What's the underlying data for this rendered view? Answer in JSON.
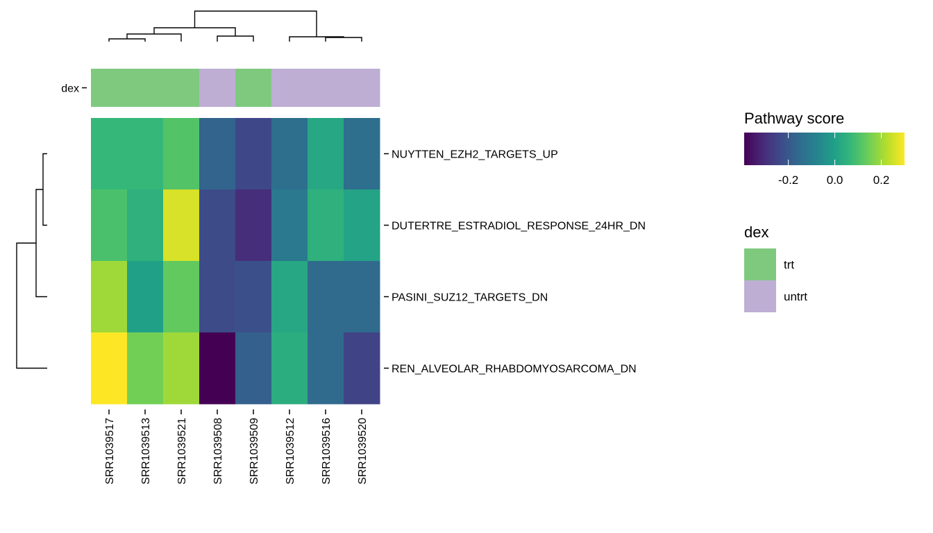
{
  "chart_data": {
    "type": "heatmap",
    "samples": [
      "SRR1039517",
      "SRR1039513",
      "SRR1039521",
      "SRR1039508",
      "SRR1039509",
      "SRR1039512",
      "SRR1039516",
      "SRR1039520"
    ],
    "pathways": [
      "NUYTTEN_EZH2_TARGETS_UP",
      "DUTERTRE_ESTRADIOL_RESPONSE_24HR_DN",
      "PASINI_SUZ12_TARGETS_DN",
      "REN_ALVEOLAR_RHABDOMYOSARCOMA_DN"
    ],
    "values": [
      [
        0.07,
        0.07,
        0.11,
        -0.17,
        -0.24,
        -0.14,
        0.02,
        -0.14
      ],
      [
        0.1,
        0.05,
        0.26,
        -0.23,
        -0.3,
        -0.11,
        0.05,
        0.01
      ],
      [
        0.2,
        0.0,
        0.13,
        -0.23,
        -0.22,
        0.02,
        -0.15,
        -0.15
      ],
      [
        0.3,
        0.15,
        0.2,
        -0.39,
        -0.18,
        0.04,
        -0.15,
        -0.25
      ]
    ],
    "color_scale": {
      "name": "viridis",
      "range": [
        -0.39,
        0.3
      ],
      "legend_title": "Pathway score",
      "ticks": [
        -0.2,
        0.0,
        0.2
      ],
      "tick_labels": [
        "-0.2",
        "0.0",
        "0.2"
      ]
    },
    "annotation": {
      "name": "dex",
      "values": [
        "trt",
        "trt",
        "trt",
        "untrt",
        "trt",
        "untrt",
        "untrt",
        "untrt"
      ],
      "legend_title": "dex",
      "levels": [
        {
          "label": "trt",
          "color": "#7fc97f"
        },
        {
          "label": "untrt",
          "color": "#beaed4"
        }
      ]
    },
    "dendrograms": [
      "column",
      "row"
    ]
  }
}
